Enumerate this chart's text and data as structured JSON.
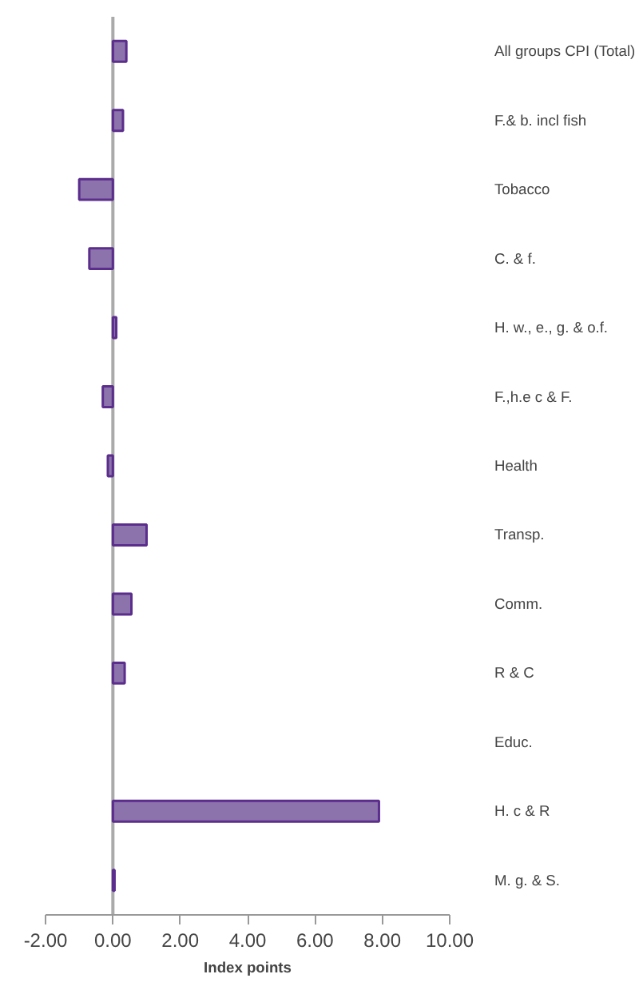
{
  "chart_data": {
    "type": "bar",
    "orientation": "horizontal",
    "xlabel": "Index points",
    "categories": [
      "All groups CPI (Total)",
      "F.& b. incl fish",
      "Tobacco",
      "C. & f.",
      "H. w., e., g. & o.f.",
      "F.,h.e c & F.",
      "Health",
      "Transp.",
      "Comm.",
      "R & C",
      "Educ.",
      "H. c & R",
      "M. g. & S."
    ],
    "values": [
      0.4,
      0.3,
      -1.0,
      -0.7,
      0.1,
      -0.3,
      -0.15,
      1.0,
      0.55,
      0.35,
      null,
      7.9,
      0.05
    ],
    "color": "#8064a2",
    "xlim": [
      -2,
      10
    ],
    "xticks": [
      {
        "value": -2,
        "label": "-2.00"
      },
      {
        "value": 0,
        "label": "0.00"
      },
      {
        "value": 2,
        "label": "2.00"
      },
      {
        "value": 4,
        "label": "4.00"
      },
      {
        "value": 6,
        "label": "6.00"
      },
      {
        "value": 8,
        "label": "8.00"
      },
      {
        "value": 10,
        "label": "10.00"
      }
    ],
    "ref_lines": [
      {
        "axis": "x",
        "value": 0,
        "color": "#aaaaaa"
      }
    ]
  }
}
